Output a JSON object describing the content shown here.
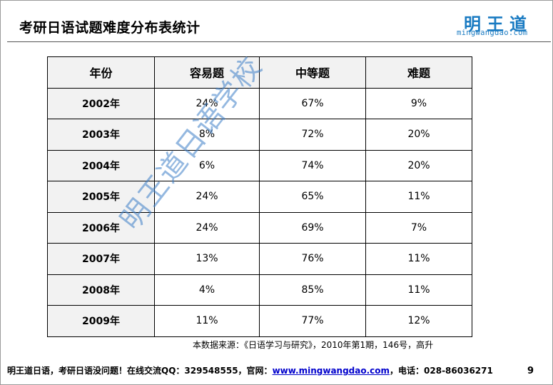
{
  "slide": {
    "title": "考研日语试题难度分布表统计",
    "logo_cn": "明王道",
    "logo_en": "mingwangdao.com",
    "source": "本数据来源：《日语学习与研究》，2010年第1期，146号，高升",
    "watermark": "明王道日语学校",
    "page_number": "9"
  },
  "table": {
    "headers": [
      "年份",
      "容易题",
      "中等题",
      "难题"
    ],
    "rows": [
      [
        "2002年",
        "24%",
        "67%",
        "9%"
      ],
      [
        "2003年",
        "8%",
        "72%",
        "20%"
      ],
      [
        "2004年",
        "6%",
        "74%",
        "20%"
      ],
      [
        "2005年",
        "24%",
        "65%",
        "11%"
      ],
      [
        "2006年",
        "24%",
        "69%",
        "7%"
      ],
      [
        "2007年",
        "13%",
        "76%",
        "11%"
      ],
      [
        "2008年",
        "4%",
        "85%",
        "11%"
      ],
      [
        "2009年",
        "11%",
        "77%",
        "12%"
      ]
    ]
  },
  "footer": {
    "text_before": "明王道日语，考研日语没问题！在线交流QQ：329548555，官网：",
    "link": "www.mingwangdao.com",
    "text_after": "，电话：028-86036271"
  },
  "colors": {
    "logo_blue": "#1a7bc2",
    "header_fill": "#f2f2f2",
    "link_blue": "#0000cc",
    "watermark_blue": "#3d7fc8"
  }
}
